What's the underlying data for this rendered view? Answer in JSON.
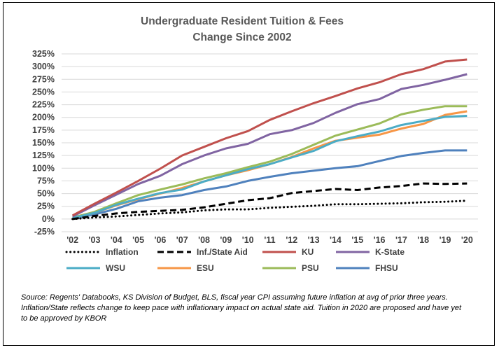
{
  "chart_data": {
    "type": "line",
    "title": [
      "Undergraduate Resident Tuition & Fees",
      "Change Since 2002"
    ],
    "categories": [
      "'02",
      "'03",
      "'04",
      "'05",
      "'06",
      "'07",
      "'08",
      "'09",
      "'10",
      "'11",
      "'12",
      "'13",
      "'14",
      "'15",
      "'16",
      "'17",
      "'18",
      "'19",
      "'20"
    ],
    "ylim": [
      -25,
      325
    ],
    "yticks": [
      "-25%",
      "0%",
      "25%",
      "50%",
      "75%",
      "100%",
      "125%",
      "150%",
      "175%",
      "200%",
      "225%",
      "250%",
      "275%",
      "300%",
      "325%"
    ],
    "ytick_values": [
      -25,
      0,
      25,
      50,
      75,
      100,
      125,
      150,
      175,
      200,
      225,
      250,
      275,
      300,
      325
    ],
    "grid": true,
    "legend_position": "bottom",
    "series": [
      {
        "name": "Inflation",
        "color": "#000000",
        "style": "dotted",
        "values": [
          0,
          3,
          5,
          8,
          11,
          13,
          17,
          19,
          19,
          22,
          24,
          26,
          29,
          29,
          30,
          31,
          33,
          34,
          36
        ]
      },
      {
        "name": "Inf./State Aid",
        "color": "#000000",
        "style": "dashed",
        "values": [
          0,
          6,
          11,
          14,
          16,
          18,
          23,
          30,
          37,
          41,
          51,
          55,
          59,
          57,
          62,
          65,
          70,
          69,
          70
        ]
      },
      {
        "name": "KU",
        "color": "#c0504d",
        "style": "solid",
        "values": [
          7,
          30,
          52,
          75,
          99,
          125,
          142,
          159,
          173,
          195,
          212,
          228,
          242,
          257,
          269,
          285,
          295,
          310,
          314
        ]
      },
      {
        "name": "K-State",
        "color": "#8064a2",
        "style": "solid",
        "values": [
          5,
          27,
          48,
          69,
          85,
          108,
          125,
          139,
          148,
          167,
          175,
          189,
          209,
          226,
          236,
          256,
          264,
          274,
          285
        ]
      },
      {
        "name": "WSU",
        "color": "#4bacc6",
        "style": "solid",
        "values": [
          2,
          12,
          28,
          40,
          51,
          58,
          74,
          86,
          98,
          108,
          121,
          134,
          153,
          163,
          172,
          185,
          193,
          201,
          203
        ]
      },
      {
        "name": "ESU",
        "color": "#f79646",
        "style": "solid",
        "values": [
          2,
          12,
          27,
          39,
          50,
          61,
          74,
          86,
          96,
          108,
          122,
          139,
          154,
          160,
          166,
          178,
          187,
          205,
          212
        ]
      },
      {
        "name": "PSU",
        "color": "#9bbb59",
        "style": "solid",
        "values": [
          3,
          14,
          31,
          47,
          58,
          68,
          80,
          90,
          102,
          113,
          128,
          146,
          164,
          176,
          188,
          206,
          215,
          222,
          222
        ]
      },
      {
        "name": "FHSU",
        "color": "#4f81bd",
        "style": "solid",
        "values": [
          0,
          9,
          20,
          35,
          42,
          47,
          57,
          64,
          75,
          83,
          90,
          95,
          100,
          104,
          114,
          124,
          130,
          135,
          135
        ]
      }
    ]
  },
  "source_note": "Source: Regents' Databooks, KS Division of Budget, BLS, fiscal year CPI assuming future inflation at avg of prior three years.  Inflation/State reflects change to keep pace with inflationary impact on actual state aid. Tuition in 2020 are proposed and have yet to be approved by KBOR"
}
